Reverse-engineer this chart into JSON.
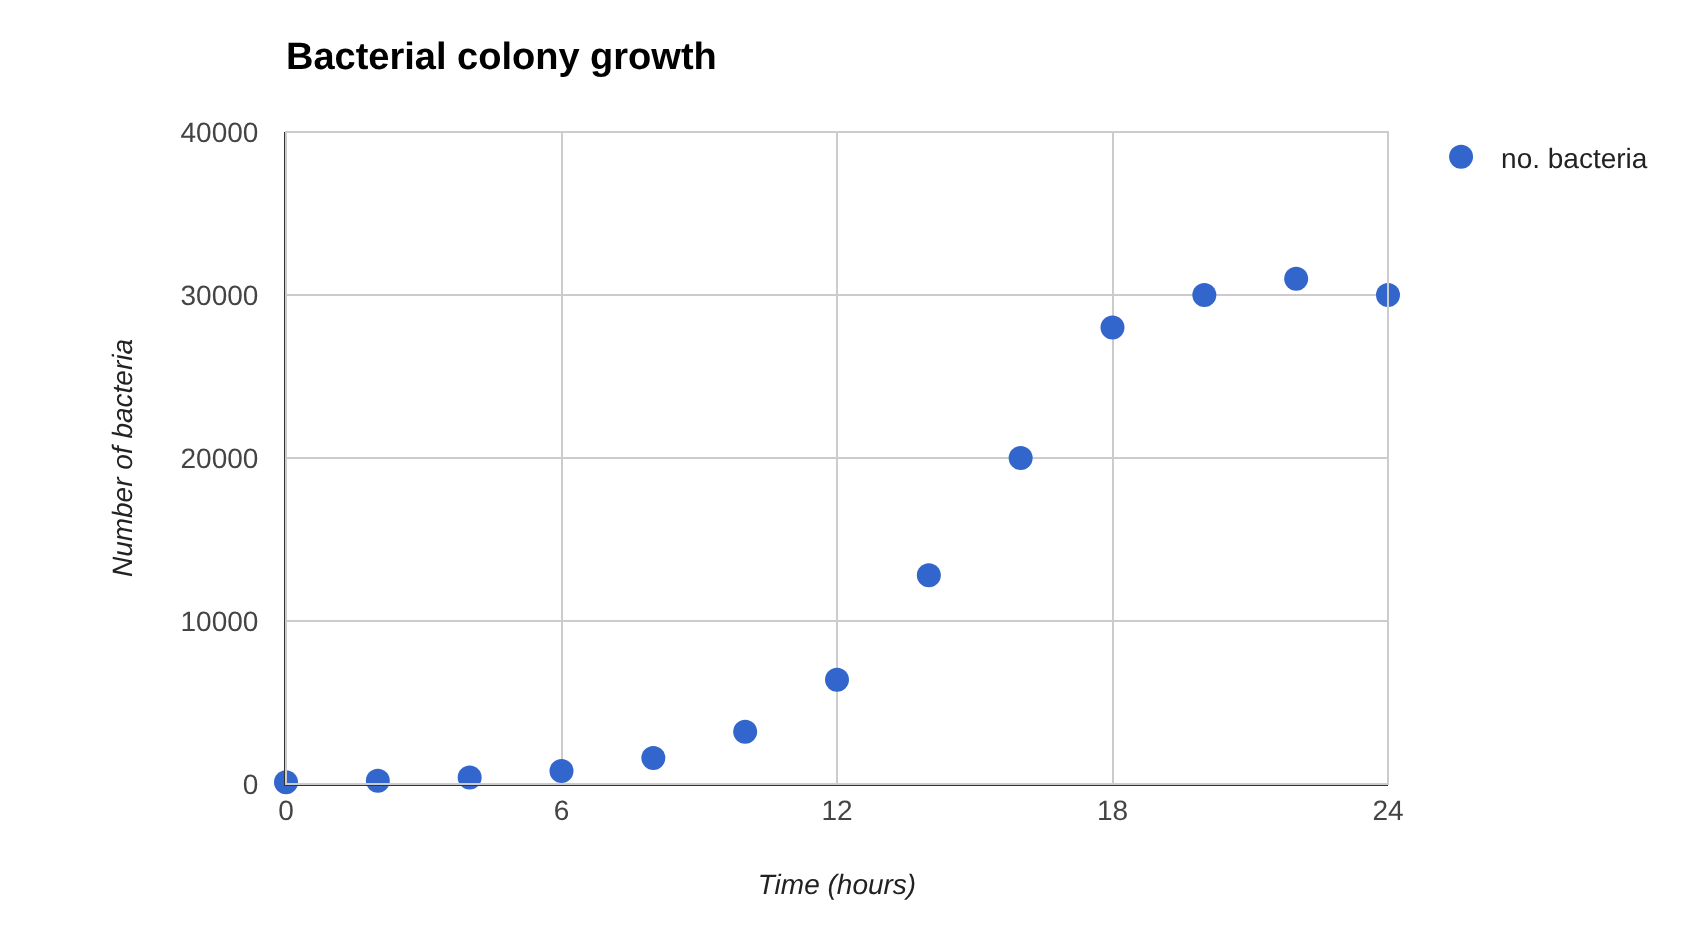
{
  "chart_data": {
    "type": "scatter",
    "title": "Bacterial colony growth",
    "xlabel": "Time (hours)",
    "ylabel": "Number of bacteria",
    "x": [
      0,
      2,
      4,
      6,
      8,
      10,
      12,
      14,
      16,
      18,
      20,
      22,
      24
    ],
    "series": [
      {
        "name": "no. bacteria",
        "color": "#3366cc",
        "values": [
          100,
          200,
          400,
          800,
          1600,
          3200,
          6400,
          12800,
          20000,
          28000,
          30000,
          31000,
          30000
        ]
      }
    ],
    "xlim": [
      0,
      24
    ],
    "xticks": [
      0,
      6,
      12,
      18,
      24
    ],
    "ylim": [
      0,
      40000
    ],
    "yticks": [
      0,
      10000,
      20000,
      30000,
      40000
    ],
    "grid": true,
    "legend": "top right",
    "marker": "circle"
  }
}
